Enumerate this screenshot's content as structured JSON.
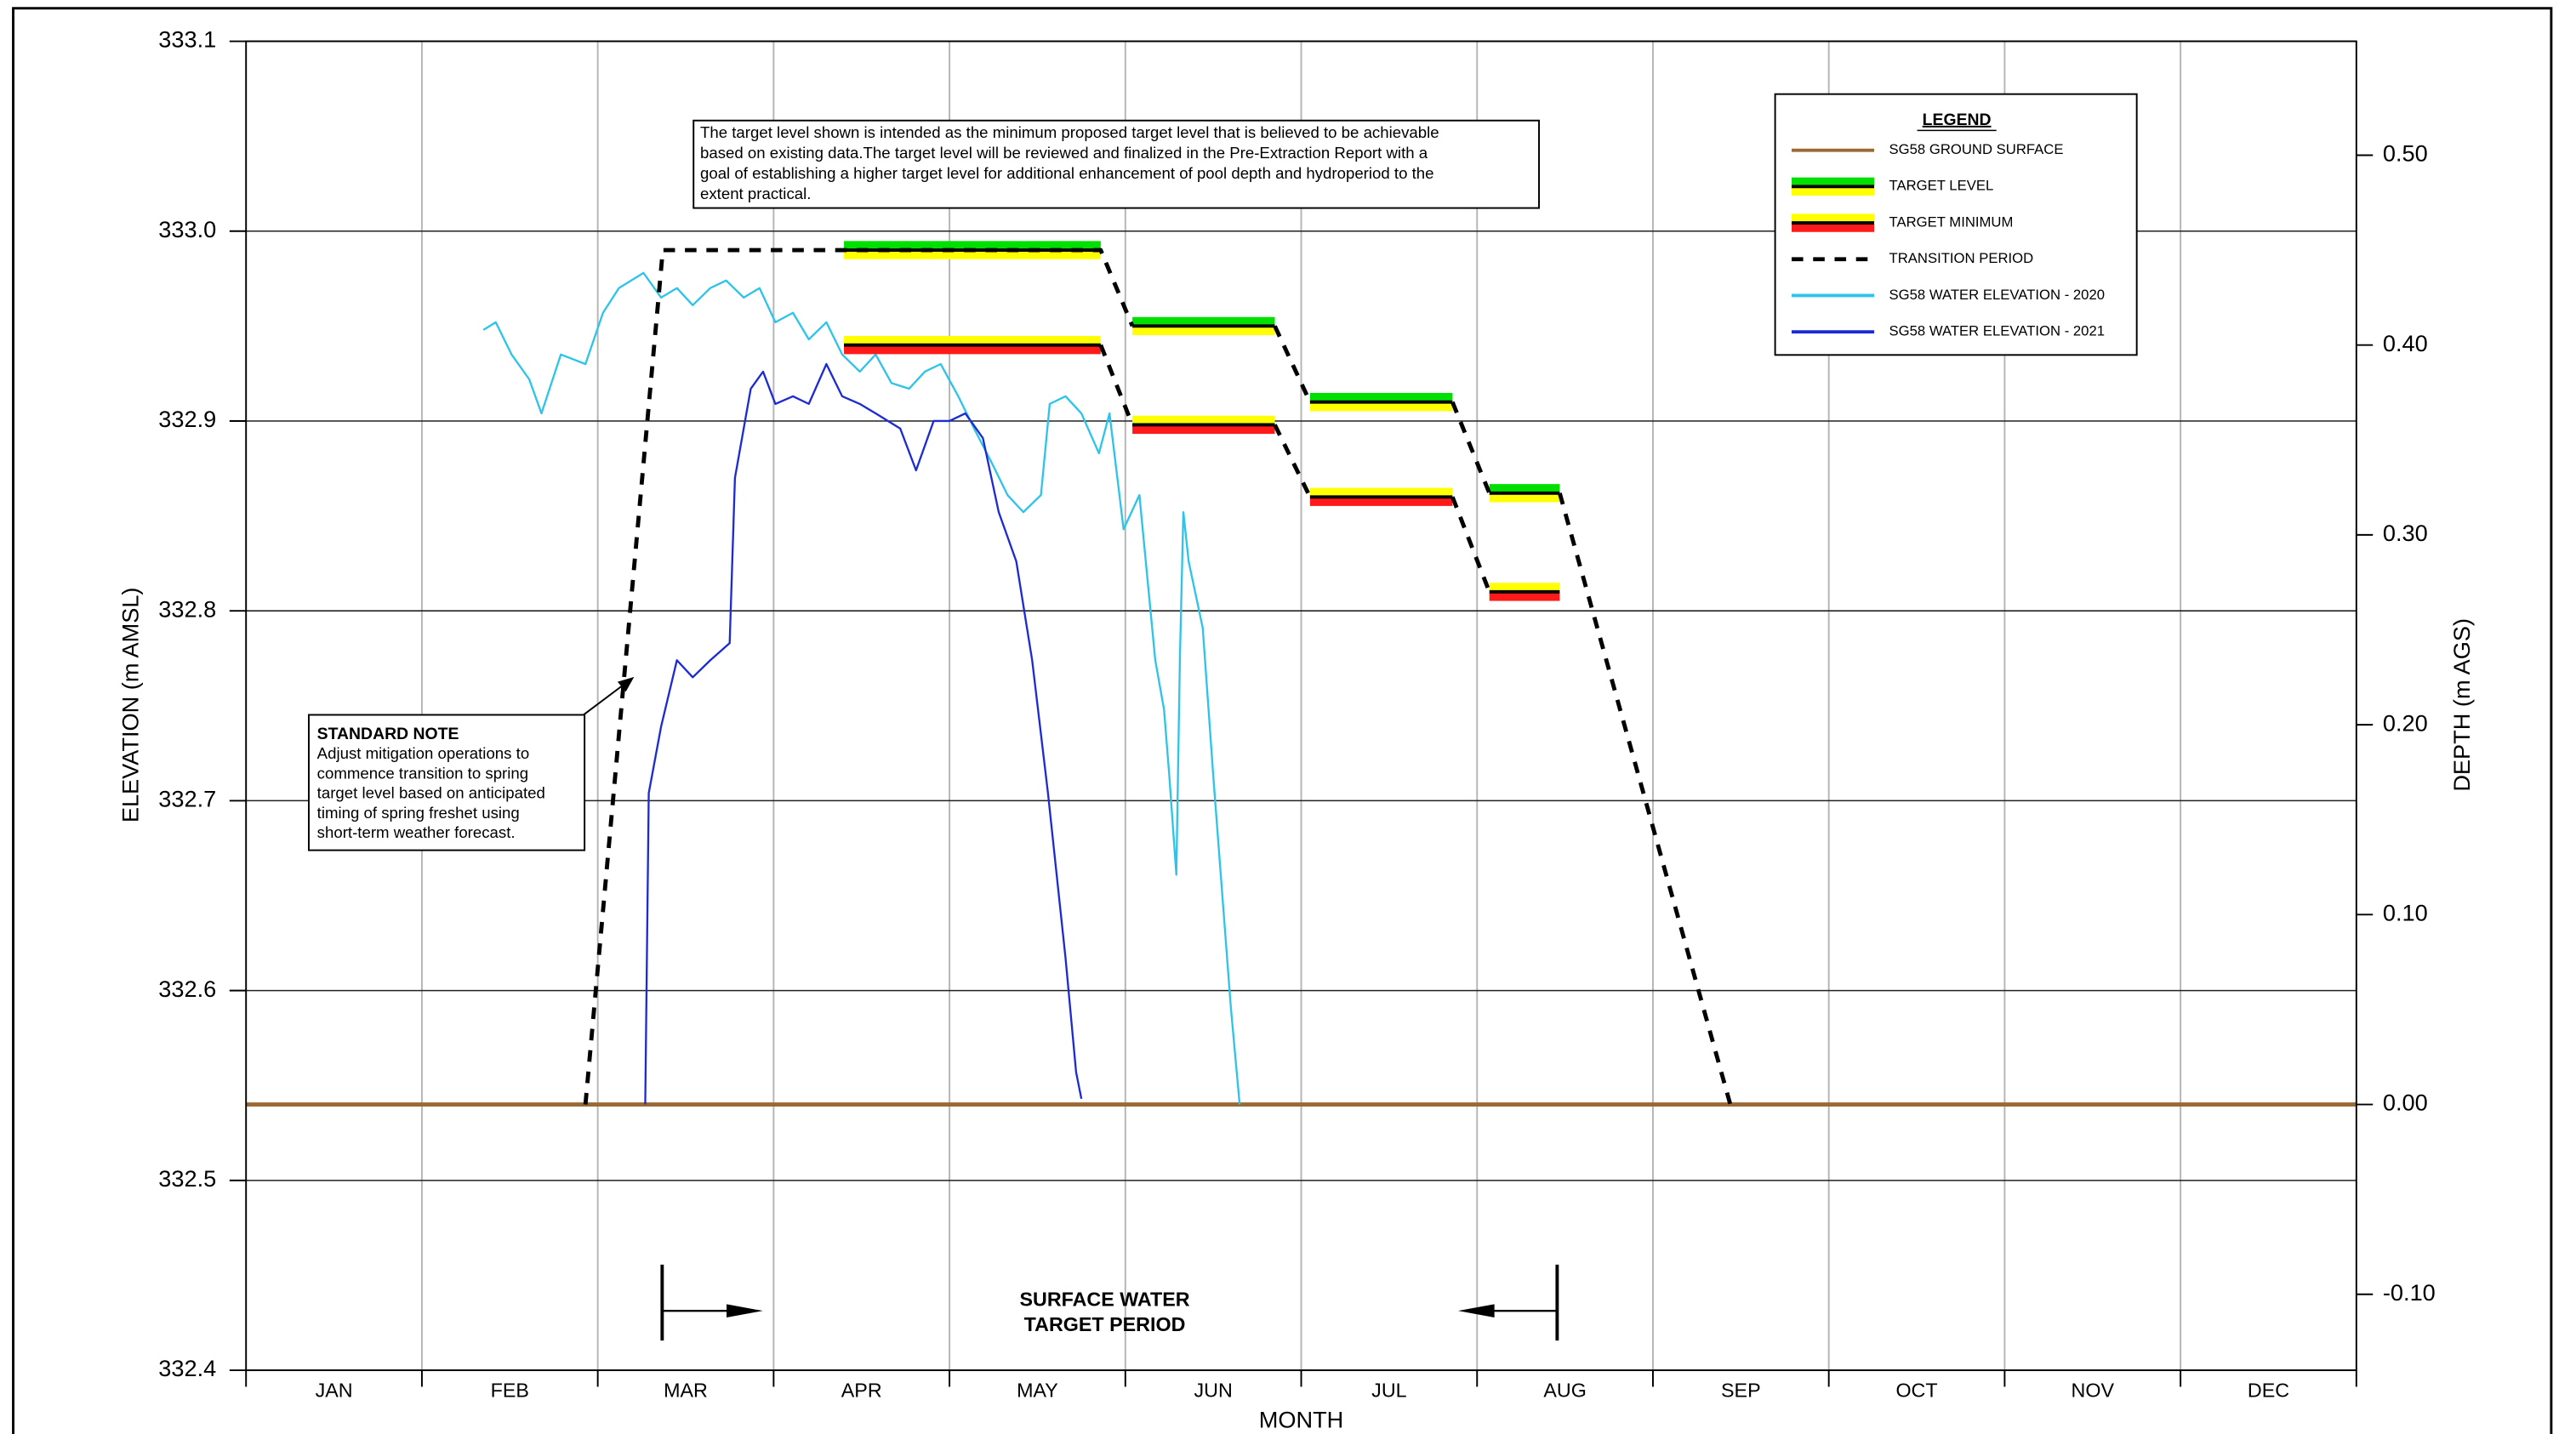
{
  "chart_data": {
    "type": "line",
    "ylabel": "ELEVATION (m AMSL)",
    "y2label": "DEPTH (m AGS)",
    "xlabel": "MONTH",
    "categories": [
      "JAN",
      "FEB",
      "MAR",
      "APR",
      "MAY",
      "JUN",
      "JUL",
      "AUG",
      "SEP",
      "OCT",
      "NOV",
      "DEC"
    ],
    "xlim": [
      0,
      12
    ],
    "ylim": [
      332.4,
      333.1
    ],
    "yticks": [
      332.4,
      332.5,
      332.6,
      332.7,
      332.8,
      332.9,
      {
        "value": 333,
        "label": "333.0"
      },
      333.1
    ],
    "y2lim": [
      -0.14,
      0.56
    ],
    "y2ticks": [
      {
        "value": -0.1,
        "label": "-0.10"
      },
      {
        "value": 0,
        "label": "0.00"
      },
      {
        "value": 0.1,
        "label": "0.10"
      },
      {
        "value": 0.2,
        "label": "0.20"
      },
      {
        "value": 0.3,
        "label": "0.30"
      },
      {
        "value": 0.4,
        "label": "0.40"
      },
      {
        "value": 0.5,
        "label": "0.50"
      }
    ],
    "grid": true,
    "legend_title": "LEGEND",
    "legend": "top-right",
    "note": [
      "The target level shown is intended as the minimum proposed target level that is believed to be achievable",
      "based on existing data.The target level will be reviewed and finalized in the Pre-Extraction Report with a",
      "goal of establishing a higher target level for additional enhancement of pool depth and hydroperiod to the",
      "extent practical."
    ],
    "standard_note_title": "STANDARD NOTE",
    "standard_note": [
      "Adjust mitigation operations to",
      "commence transition to spring",
      "target level based on anticipated",
      "timing of spring freshet using",
      "short-term weather forecast."
    ],
    "period_label": [
      "SURFACE WATER",
      "TARGET PERIOD"
    ],
    "series": [
      {
        "name": "SG58 GROUND SURFACE",
        "style": "solid",
        "color": "#9a6a34",
        "x": [
          0,
          12
        ],
        "values": [
          332.54,
          332.54
        ]
      },
      {
        "name": "TARGET LEVEL",
        "style": "band",
        "colors": [
          "#00e000",
          "#ffff00"
        ],
        "x": [
          3.4,
          4.86,
          null,
          5.04,
          5.85,
          null,
          6.05,
          6.86,
          null,
          7.07,
          7.47
        ],
        "values": [
          332.99,
          332.99,
          null,
          332.95,
          332.95,
          null,
          332.91,
          332.91,
          null,
          332.862,
          332.862
        ]
      },
      {
        "name": "TARGET MINIMUM",
        "style": "band",
        "colors": [
          "#ffff00",
          "#ff1a1a"
        ],
        "x": [
          3.4,
          4.86,
          null,
          5.04,
          5.85,
          null,
          6.05,
          6.86,
          null,
          7.07,
          7.47
        ],
        "values": [
          332.94,
          332.94,
          null,
          332.898,
          332.898,
          null,
          332.86,
          332.86,
          null,
          332.81,
          332.81
        ]
      },
      {
        "name": "TRANSITION PERIOD",
        "style": "dashed",
        "color": "#000000",
        "x": [
          1.93,
          2.37,
          3.4,
          4.86,
          5.04,
          null,
          5.85,
          6.05,
          null,
          6.86,
          7.07,
          null,
          7.47,
          8.44,
          null,
          4.86,
          5.04,
          null,
          5.85,
          6.05,
          null,
          6.86,
          7.07
        ],
        "values": [
          332.54,
          332.99,
          332.99,
          332.99,
          332.95,
          null,
          332.95,
          332.91,
          null,
          332.91,
          332.862,
          null,
          332.862,
          332.54,
          null,
          332.94,
          332.898,
          null,
          332.898,
          332.86,
          null,
          332.86,
          332.81
        ]
      },
      {
        "name": "SG58 WATER ELEVATION - 2020",
        "style": "solid",
        "color": "#2ec4ea",
        "x": [
          1.35,
          1.42,
          1.51,
          1.61,
          1.68,
          1.79,
          1.93,
          2.03,
          2.12,
          2.26,
          2.36,
          2.45,
          2.54,
          2.64,
          2.73,
          2.83,
          2.92,
          3.01,
          3.11,
          3.2,
          3.3,
          3.39,
          3.49,
          3.58,
          3.67,
          3.77,
          3.86,
          3.95,
          4.05,
          4.14,
          4.24,
          4.33,
          4.42,
          4.52,
          4.57,
          4.66,
          4.75,
          4.85,
          4.91,
          4.99,
          5.08,
          5.17,
          5.22,
          5.25,
          5.29,
          5.31,
          5.33,
          5.36,
          5.44,
          5.5,
          5.55,
          5.6,
          5.65
        ],
        "values": [
          332.948,
          332.952,
          332.935,
          332.922,
          332.904,
          332.935,
          332.93,
          332.957,
          332.97,
          332.978,
          332.965,
          332.97,
          332.961,
          332.97,
          332.974,
          332.965,
          332.97,
          332.952,
          332.957,
          332.943,
          332.952,
          332.935,
          332.926,
          332.935,
          332.92,
          332.917,
          332.926,
          332.93,
          332.913,
          332.896,
          332.878,
          332.861,
          332.852,
          332.861,
          332.909,
          332.913,
          332.904,
          332.883,
          332.904,
          332.843,
          332.861,
          332.774,
          332.748,
          332.713,
          332.661,
          332.774,
          332.852,
          332.826,
          332.791,
          332.713,
          332.652,
          332.591,
          332.54
        ]
      },
      {
        "name": "SG58 WATER ELEVATION - 2021",
        "style": "solid",
        "color": "#1c2bd4",
        "x": [
          2.27,
          2.29,
          2.36,
          2.45,
          2.54,
          2.64,
          2.75,
          2.78,
          2.87,
          2.94,
          3.01,
          3.11,
          3.2,
          3.3,
          3.39,
          3.49,
          3.58,
          3.72,
          3.81,
          3.91,
          4.0,
          4.09,
          4.19,
          4.28,
          4.38,
          4.47,
          4.56,
          4.66,
          4.72,
          4.75
        ],
        "values": [
          332.54,
          332.704,
          332.739,
          332.774,
          332.765,
          332.774,
          332.783,
          332.87,
          332.917,
          332.926,
          332.909,
          332.913,
          332.909,
          332.93,
          332.913,
          332.909,
          332.904,
          332.896,
          332.874,
          332.9,
          332.9,
          332.904,
          332.891,
          332.852,
          332.826,
          332.774,
          332.704,
          332.617,
          332.557,
          332.543
        ]
      }
    ]
  }
}
